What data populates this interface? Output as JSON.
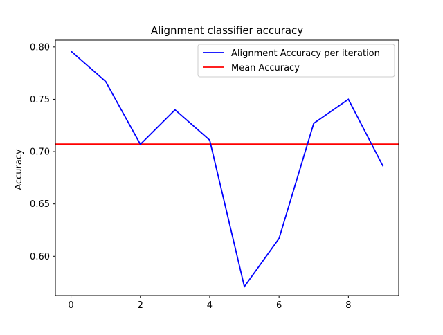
{
  "chart_data": {
    "type": "line",
    "title": "Alignment classifier accuracy",
    "xlabel": "",
    "ylabel": "Accuracy",
    "x": [
      0,
      1,
      2,
      3,
      4,
      5,
      6,
      7,
      8,
      9
    ],
    "series": [
      {
        "name": "Alignment Accuracy per iteration",
        "color": "#0000ff",
        "values": [
          0.796,
          0.767,
          0.707,
          0.74,
          0.711,
          0.571,
          0.617,
          0.727,
          0.75,
          0.686
        ]
      }
    ],
    "reference_lines": [
      {
        "name": "Mean Accuracy",
        "color": "#ff0000",
        "y": 0.7072
      }
    ],
    "xlim": [
      -0.45,
      9.45
    ],
    "ylim": [
      0.5625,
      0.8065
    ],
    "x_ticks": [
      0,
      2,
      4,
      6,
      8
    ],
    "x_tick_labels": [
      "0",
      "2",
      "4",
      "6",
      "8"
    ],
    "y_ticks": [
      0.6,
      0.65,
      0.7,
      0.75,
      0.8
    ],
    "y_tick_labels": [
      "0.60",
      "0.65",
      "0.70",
      "0.75",
      "0.80"
    ],
    "grid": false,
    "legend_position": "top-right"
  }
}
